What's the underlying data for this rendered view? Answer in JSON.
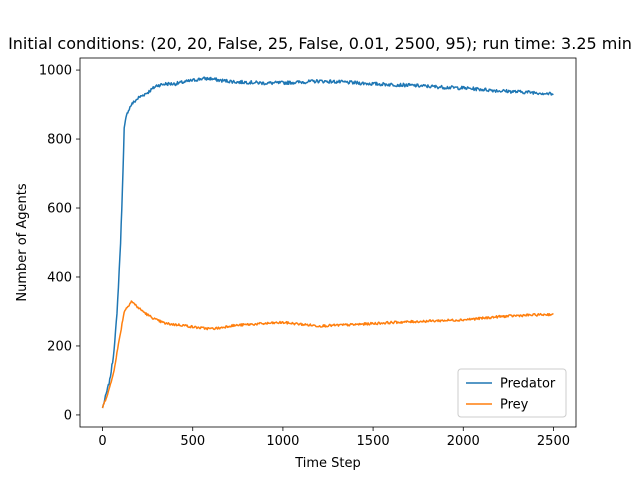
{
  "chart_data": {
    "type": "line",
    "title": "Initial conditions: (20, 20, False, 25, False, 0.01, 2500, 95); run time: 3.25 min",
    "xlabel": "Time Step",
    "ylabel": "Number of Agents",
    "xlim": [
      -125,
      2625
    ],
    "ylim": [
      -35,
      1035
    ],
    "xticks": [
      0,
      500,
      1000,
      1500,
      2000,
      2500
    ],
    "yticks": [
      0,
      200,
      400,
      600,
      800,
      1000
    ],
    "grid": false,
    "legend_position": "lower-right",
    "series": [
      {
        "name": "Predator",
        "color": "#1f77b4",
        "x": [
          0,
          20,
          40,
          60,
          80,
          100,
          110,
          120,
          130,
          140,
          160,
          180,
          200,
          250,
          300,
          350,
          400,
          450,
          500,
          550,
          600,
          650,
          700,
          750,
          800,
          900,
          1000,
          1100,
          1200,
          1300,
          1400,
          1500,
          1600,
          1700,
          1800,
          1900,
          2000,
          2100,
          2200,
          2300,
          2400,
          2500
        ],
        "values": [
          20,
          60,
          100,
          170,
          290,
          500,
          650,
          830,
          860,
          880,
          900,
          910,
          920,
          935,
          955,
          960,
          960,
          965,
          970,
          975,
          975,
          970,
          968,
          965,
          965,
          962,
          963,
          965,
          968,
          966,
          963,
          960,
          958,
          956,
          953,
          950,
          948,
          944,
          940,
          937,
          935,
          930
        ]
      },
      {
        "name": "Prey",
        "color": "#ff7f0e",
        "x": [
          0,
          20,
          40,
          60,
          80,
          100,
          120,
          140,
          160,
          180,
          200,
          250,
          300,
          350,
          400,
          450,
          500,
          550,
          600,
          650,
          700,
          800,
          900,
          1000,
          1100,
          1200,
          1300,
          1400,
          1500,
          1600,
          1700,
          1800,
          1900,
          2000,
          2100,
          2200,
          2300,
          2400,
          2500
        ],
        "values": [
          20,
          50,
          80,
          120,
          180,
          240,
          300,
          315,
          330,
          320,
          310,
          290,
          275,
          265,
          262,
          260,
          255,
          252,
          250,
          252,
          258,
          262,
          265,
          268,
          263,
          258,
          260,
          262,
          265,
          268,
          270,
          272,
          274,
          276,
          280,
          285,
          288,
          290,
          292
        ]
      }
    ]
  }
}
